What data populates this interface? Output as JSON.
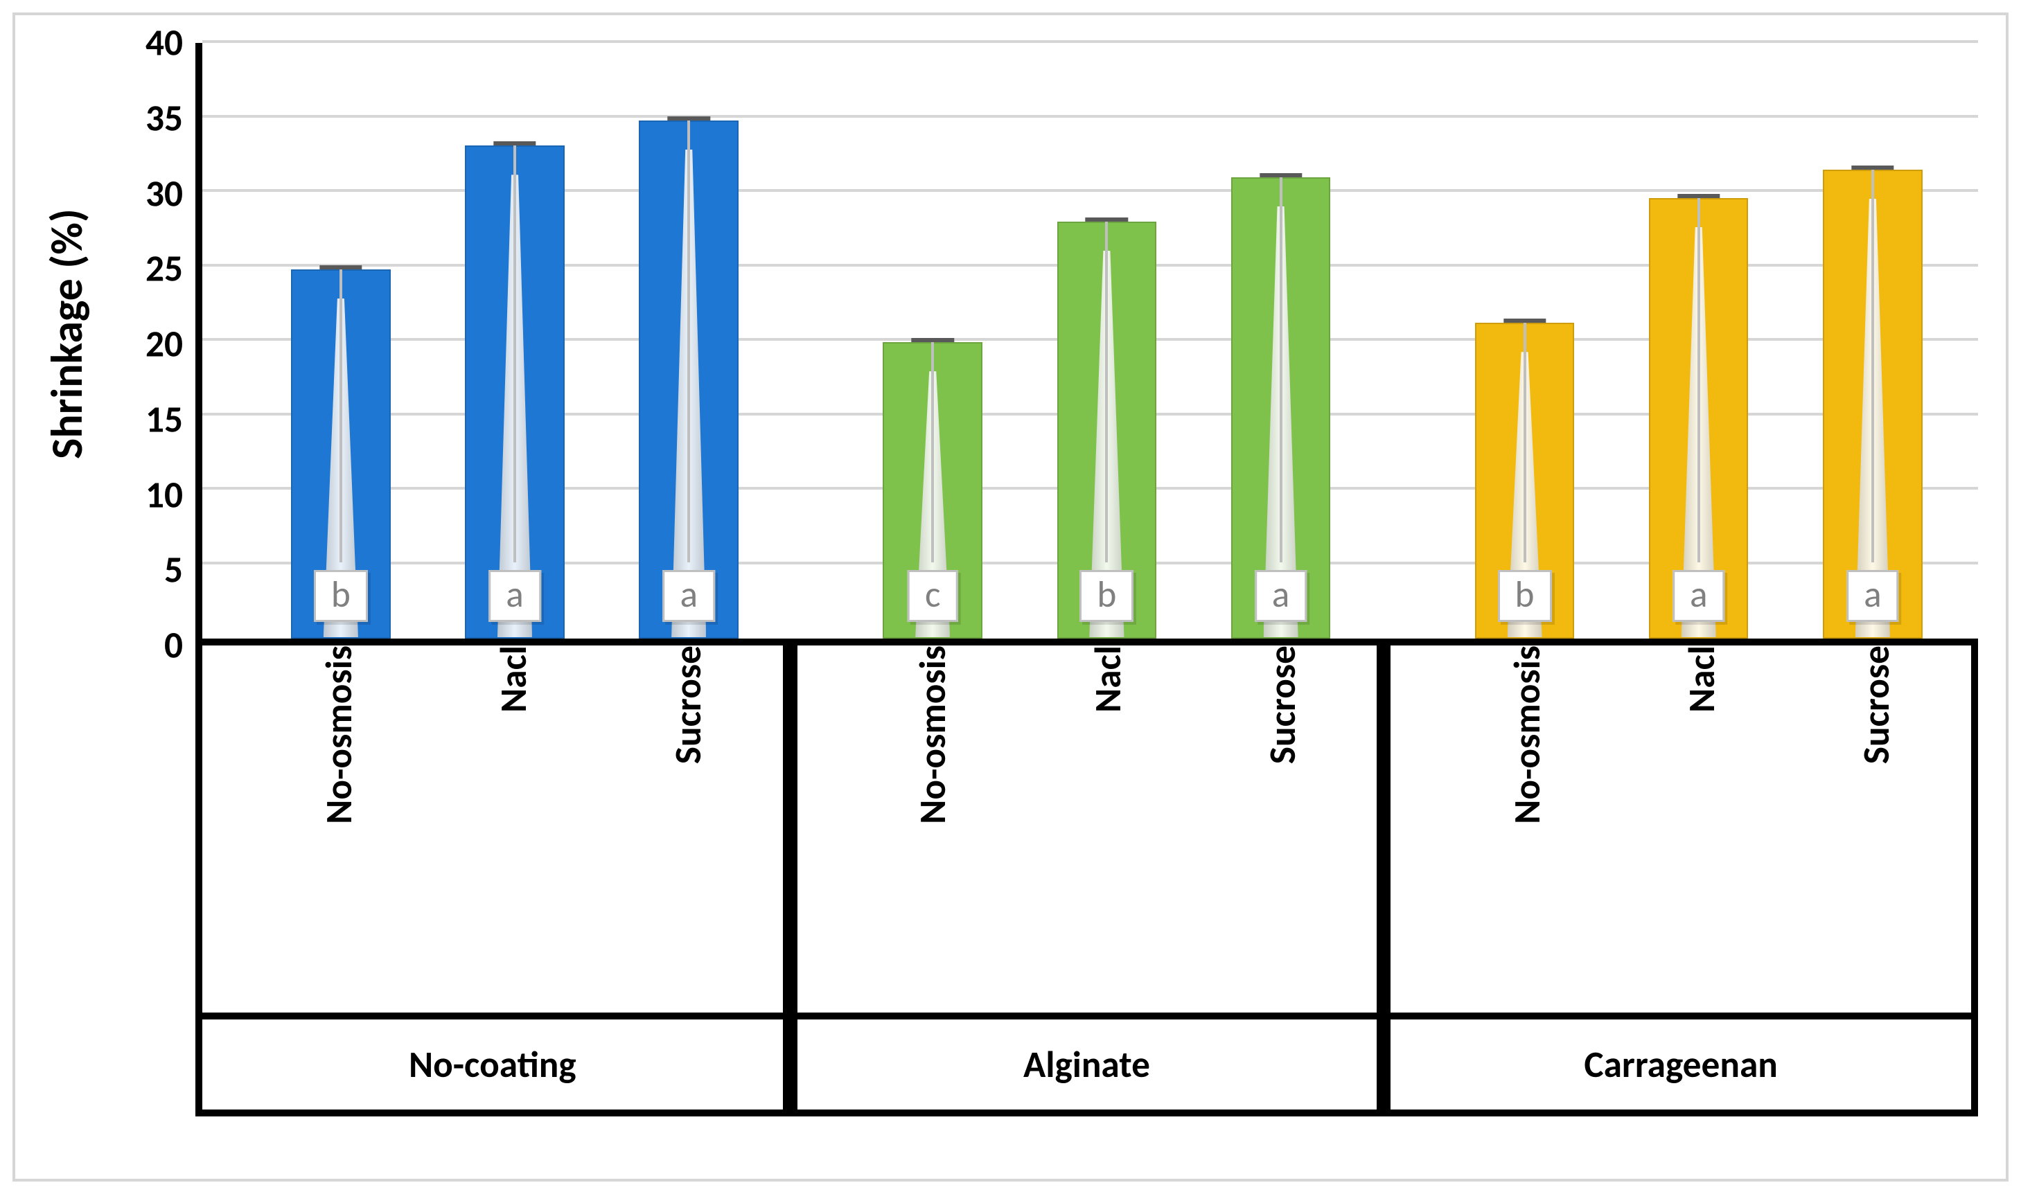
{
  "chart": {
    "type": "bar",
    "y_axis": {
      "label": "Shrinkage (%)",
      "min": 0,
      "max": 40,
      "tick_step": 5,
      "ticks": [
        0,
        5,
        10,
        15,
        20,
        25,
        30,
        35,
        40
      ],
      "label_fontsize_pt": 48,
      "tick_fontsize_pt": 40,
      "font_weight": 700
    },
    "x_axis": {
      "label_fontsize_pt": 40,
      "group_fontsize_pt": 40,
      "font_weight": 700
    },
    "grid_color": "#d6d6d6",
    "axis_color": "#000000",
    "background_color": "#ffffff",
    "significance_box": {
      "fontsize_pt": 40,
      "text_color": "#808080",
      "border_color": "#bfbfbf",
      "fill_color": "#ffffff"
    },
    "error_cap_color": "#595959",
    "bar_layout": {
      "group_width_pct": 33.333,
      "bar_width_pct": 5.6,
      "bar_gap_pct": 4.2,
      "group_padding_pct": 5.0
    },
    "groups": [
      {
        "name": "No-coating",
        "color": "#1f77d4",
        "treatments": [
          {
            "label": "No-osmosis",
            "value": 24.8,
            "sig": "b"
          },
          {
            "label": "Nacl",
            "value": 33.1,
            "sig": "a"
          },
          {
            "label": "Sucrose",
            "value": 34.8,
            "sig": "a"
          }
        ]
      },
      {
        "name": "Alginate",
        "color": "#7fc24b",
        "treatments": [
          {
            "label": "No-osmosis",
            "value": 19.9,
            "sig": "c"
          },
          {
            "label": "Nacl",
            "value": 28.0,
            "sig": "b"
          },
          {
            "label": "Sucrose",
            "value": 31.0,
            "sig": "a"
          }
        ]
      },
      {
        "name": "Carrageenan",
        "color": "#f2b90f",
        "treatments": [
          {
            "label": "No-osmosis",
            "value": 21.2,
            "sig": "b"
          },
          {
            "label": "Nacl",
            "value": 29.6,
            "sig": "a"
          },
          {
            "label": "Sucrose",
            "value": 31.5,
            "sig": "a"
          }
        ]
      }
    ]
  }
}
